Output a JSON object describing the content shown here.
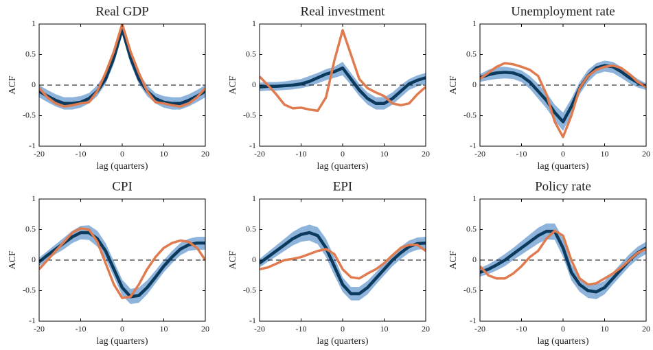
{
  "chart_data": [
    {
      "type": "line",
      "title": "Real GDP",
      "xlabel": "lag (quarters)",
      "ylabel": "ACF",
      "x": [
        -20,
        -18,
        -16,
        -14,
        -12,
        -10,
        -8,
        -6,
        -4,
        -2,
        0,
        2,
        4,
        6,
        8,
        10,
        12,
        14,
        16,
        18,
        20
      ],
      "xlim": [
        -20,
        20
      ],
      "ylim": [
        -1,
        1
      ],
      "xticks": [
        -20,
        -10,
        0,
        10,
        20
      ],
      "yticks": [
        -1,
        -0.5,
        0,
        0.5,
        1
      ],
      "reference_line": 0,
      "band": {
        "color": "#8fb4dc",
        "lower": [
          -0.2,
          -0.28,
          -0.35,
          -0.4,
          -0.4,
          -0.37,
          -0.3,
          -0.18,
          0.02,
          0.35,
          0.82,
          0.35,
          0.02,
          -0.18,
          -0.3,
          -0.37,
          -0.4,
          -0.4,
          -0.35,
          -0.28,
          -0.2
        ],
        "upper": [
          0.0,
          -0.08,
          -0.15,
          -0.2,
          -0.2,
          -0.18,
          -0.13,
          0.0,
          0.2,
          0.55,
          1.0,
          0.55,
          0.2,
          0.0,
          -0.13,
          -0.18,
          -0.2,
          -0.2,
          -0.15,
          -0.08,
          0.0
        ]
      },
      "series": [
        {
          "color": "#0b3a5c",
          "values": [
            -0.1,
            -0.18,
            -0.25,
            -0.3,
            -0.3,
            -0.28,
            -0.22,
            -0.1,
            0.1,
            0.45,
            0.92,
            0.45,
            0.1,
            -0.1,
            -0.22,
            -0.28,
            -0.3,
            -0.3,
            -0.25,
            -0.18,
            -0.1
          ]
        },
        {
          "color": "#e07b4f",
          "values": [
            -0.05,
            -0.2,
            -0.3,
            -0.35,
            -0.33,
            -0.3,
            -0.28,
            -0.1,
            0.2,
            0.55,
            1.0,
            0.55,
            0.2,
            -0.1,
            -0.28,
            -0.3,
            -0.33,
            -0.35,
            -0.3,
            -0.2,
            -0.05
          ]
        }
      ]
    },
    {
      "type": "line",
      "title": "Real investment",
      "xlabel": "lag (quarters)",
      "ylabel": "ACF",
      "x": [
        -20,
        -18,
        -16,
        -14,
        -12,
        -10,
        -8,
        -6,
        -4,
        -2,
        0,
        2,
        4,
        6,
        8,
        10,
        12,
        14,
        16,
        18,
        20
      ],
      "xlim": [
        -20,
        20
      ],
      "ylim": [
        -1,
        1
      ],
      "xticks": [
        -20,
        -10,
        0,
        10,
        20
      ],
      "yticks": [
        -1,
        -0.5,
        0,
        0.5,
        1
      ],
      "reference_line": 0,
      "band": {
        "color": "#8fb4dc",
        "lower": [
          -0.1,
          -0.09,
          -0.09,
          -0.08,
          -0.07,
          -0.05,
          -0.02,
          0.03,
          0.08,
          0.12,
          0.16,
          0.0,
          -0.18,
          -0.32,
          -0.4,
          -0.4,
          -0.32,
          -0.2,
          -0.08,
          -0.02,
          0.02
        ],
        "upper": [
          0.04,
          0.05,
          0.05,
          0.06,
          0.08,
          0.1,
          0.15,
          0.2,
          0.26,
          0.3,
          0.38,
          0.2,
          0.02,
          -0.12,
          -0.2,
          -0.2,
          -0.12,
          0.0,
          0.1,
          0.16,
          0.2
        ]
      },
      "series": [
        {
          "color": "#0b3a5c",
          "values": [
            -0.03,
            -0.02,
            -0.02,
            -0.01,
            0,
            0.02,
            0.06,
            0.12,
            0.18,
            0.22,
            0.28,
            0.1,
            -0.08,
            -0.22,
            -0.3,
            -0.3,
            -0.22,
            -0.1,
            0.02,
            0.08,
            0.12
          ]
        },
        {
          "color": "#e07b4f",
          "values": [
            0.14,
            0.0,
            -0.15,
            -0.32,
            -0.38,
            -0.37,
            -0.4,
            -0.42,
            -0.2,
            0.4,
            0.9,
            0.5,
            0.1,
            -0.05,
            -0.12,
            -0.18,
            -0.3,
            -0.33,
            -0.3,
            -0.15,
            -0.03
          ]
        }
      ]
    },
    {
      "type": "line",
      "title": "Unemployment rate",
      "xlabel": "lag (quarters)",
      "ylabel": "ACF",
      "x": [
        -20,
        -18,
        -16,
        -14,
        -12,
        -10,
        -8,
        -6,
        -4,
        -2,
        0,
        2,
        4,
        6,
        8,
        10,
        12,
        14,
        16,
        18,
        20
      ],
      "xlim": [
        -20,
        20
      ],
      "ylim": [
        -1,
        1
      ],
      "xticks": [
        -20,
        -10,
        0,
        10,
        20
      ],
      "yticks": [
        -1,
        -0.5,
        0,
        0.5,
        1
      ],
      "reference_line": 0,
      "band": {
        "color": "#8fb4dc",
        "lower": [
          0.05,
          0.08,
          0.1,
          0.11,
          0.1,
          0.05,
          -0.06,
          -0.22,
          -0.38,
          -0.58,
          -0.75,
          -0.48,
          -0.15,
          0.05,
          0.18,
          0.22,
          0.2,
          0.12,
          0.03,
          -0.04,
          -0.08
        ],
        "upper": [
          0.18,
          0.25,
          0.3,
          0.3,
          0.28,
          0.24,
          0.15,
          0.02,
          -0.12,
          -0.32,
          -0.45,
          -0.22,
          0.05,
          0.25,
          0.36,
          0.4,
          0.38,
          0.3,
          0.2,
          0.1,
          0.03
        ]
      },
      "series": [
        {
          "color": "#0b3a5c",
          "values": [
            0.12,
            0.17,
            0.2,
            0.21,
            0.2,
            0.15,
            0.05,
            -0.1,
            -0.25,
            -0.45,
            -0.6,
            -0.35,
            -0.05,
            0.15,
            0.28,
            0.32,
            0.3,
            0.22,
            0.12,
            0.04,
            -0.02
          ]
        },
        {
          "color": "#e07b4f",
          "values": [
            0.1,
            0.2,
            0.3,
            0.36,
            0.34,
            0.3,
            0.25,
            0.15,
            -0.15,
            -0.6,
            -0.85,
            -0.5,
            -0.05,
            0.15,
            0.25,
            0.3,
            0.32,
            0.28,
            0.18,
            0.05,
            -0.03
          ]
        }
      ]
    },
    {
      "type": "line",
      "title": "CPI",
      "xlabel": "lag (quarters)",
      "ylabel": "ACF",
      "x": [
        -20,
        -18,
        -16,
        -14,
        -12,
        -10,
        -8,
        -6,
        -4,
        -2,
        0,
        2,
        4,
        6,
        8,
        10,
        12,
        14,
        16,
        18,
        20
      ],
      "xlim": [
        -20,
        20
      ],
      "ylim": [
        -1,
        1
      ],
      "xticks": [
        -20,
        -10,
        0,
        10,
        20
      ],
      "yticks": [
        -1,
        -0.5,
        0,
        0.5,
        1
      ],
      "reference_line": 0,
      "band": {
        "color": "#8fb4dc",
        "lower": [
          -0.1,
          0.0,
          0.1,
          0.18,
          0.28,
          0.34,
          0.33,
          0.22,
          0.02,
          -0.28,
          -0.58,
          -0.72,
          -0.7,
          -0.56,
          -0.38,
          -0.2,
          -0.05,
          0.08,
          0.15,
          0.17,
          0.17
        ],
        "upper": [
          0.04,
          0.15,
          0.26,
          0.37,
          0.48,
          0.56,
          0.57,
          0.48,
          0.28,
          -0.02,
          -0.32,
          -0.47,
          -0.45,
          -0.33,
          -0.17,
          0.0,
          0.15,
          0.28,
          0.35,
          0.38,
          0.38
        ]
      },
      "series": [
        {
          "color": "#0b3a5c",
          "values": [
            -0.03,
            0.08,
            0.18,
            0.28,
            0.38,
            0.45,
            0.45,
            0.35,
            0.15,
            -0.15,
            -0.45,
            -0.6,
            -0.58,
            -0.45,
            -0.28,
            -0.1,
            0.05,
            0.18,
            0.25,
            0.28,
            0.28
          ]
        },
        {
          "color": "#e07b4f",
          "values": [
            -0.15,
            0.0,
            0.15,
            0.3,
            0.45,
            0.52,
            0.5,
            0.3,
            -0.05,
            -0.4,
            -0.62,
            -0.6,
            -0.4,
            -0.15,
            0.05,
            0.2,
            0.28,
            0.32,
            0.3,
            0.2,
            0.0
          ]
        }
      ]
    },
    {
      "type": "line",
      "title": "EPI",
      "xlabel": "lag (quarters)",
      "ylabel": "ACF",
      "x": [
        -20,
        -18,
        -16,
        -14,
        -12,
        -10,
        -8,
        -6,
        -4,
        -2,
        0,
        2,
        4,
        6,
        8,
        10,
        12,
        14,
        16,
        18,
        20
      ],
      "xlim": [
        -20,
        20
      ],
      "ylim": [
        -1,
        1
      ],
      "xticks": [
        -20,
        -10,
        0,
        10,
        20
      ],
      "yticks": [
        -1,
        -0.5,
        0,
        0.5,
        1
      ],
      "reference_line": 0,
      "band": {
        "color": "#8fb4dc",
        "lower": [
          -0.12,
          -0.03,
          0.06,
          0.15,
          0.24,
          0.3,
          0.32,
          0.26,
          0.05,
          -0.25,
          -0.52,
          -0.66,
          -0.66,
          -0.56,
          -0.4,
          -0.25,
          -0.1,
          0.02,
          0.12,
          0.17,
          0.18
        ],
        "upper": [
          0.02,
          0.13,
          0.24,
          0.35,
          0.46,
          0.54,
          0.58,
          0.54,
          0.35,
          0.05,
          -0.28,
          -0.44,
          -0.44,
          -0.34,
          -0.2,
          -0.05,
          0.1,
          0.22,
          0.32,
          0.37,
          0.38
        ]
      },
      "series": [
        {
          "color": "#0b3a5c",
          "values": [
            -0.05,
            0.05,
            0.15,
            0.25,
            0.35,
            0.42,
            0.45,
            0.4,
            0.2,
            -0.1,
            -0.4,
            -0.55,
            -0.55,
            -0.45,
            -0.3,
            -0.15,
            0.0,
            0.12,
            0.22,
            0.27,
            0.28
          ]
        },
        {
          "color": "#e07b4f",
          "values": [
            -0.15,
            -0.12,
            -0.06,
            0.0,
            0.02,
            0.05,
            0.1,
            0.15,
            0.18,
            0.1,
            -0.15,
            -0.28,
            -0.3,
            -0.22,
            -0.15,
            -0.05,
            0.08,
            0.2,
            0.25,
            0.25,
            0.15
          ]
        }
      ]
    },
    {
      "type": "line",
      "title": "Policy rate",
      "xlabel": "lag (quarters)",
      "ylabel": "ACF",
      "x": [
        -20,
        -18,
        -16,
        -14,
        -12,
        -10,
        -8,
        -6,
        -4,
        -2,
        0,
        2,
        4,
        6,
        8,
        10,
        12,
        14,
        16,
        18,
        20
      ],
      "xlim": [
        -20,
        20
      ],
      "ylim": [
        -1,
        1
      ],
      "xticks": [
        -20,
        -10,
        0,
        10,
        20
      ],
      "yticks": [
        -1,
        -0.5,
        0,
        0.5,
        1
      ],
      "reference_line": 0,
      "band": {
        "color": "#8fb4dc",
        "lower": [
          -0.27,
          -0.23,
          -0.17,
          -0.1,
          0.0,
          0.09,
          0.18,
          0.27,
          0.34,
          0.33,
          0.05,
          -0.33,
          -0.52,
          -0.62,
          -0.64,
          -0.56,
          -0.4,
          -0.25,
          -0.1,
          0.02,
          0.1
        ],
        "upper": [
          -0.13,
          -0.07,
          0.01,
          0.1,
          0.2,
          0.31,
          0.42,
          0.53,
          0.6,
          0.6,
          0.35,
          -0.07,
          -0.28,
          -0.38,
          -0.4,
          -0.34,
          -0.2,
          -0.05,
          0.1,
          0.22,
          0.3
        ]
      },
      "series": [
        {
          "color": "#0b3a5c",
          "values": [
            -0.2,
            -0.15,
            -0.08,
            0.0,
            0.1,
            0.2,
            0.3,
            0.4,
            0.47,
            0.47,
            0.2,
            -0.2,
            -0.4,
            -0.5,
            -0.52,
            -0.45,
            -0.3,
            -0.15,
            0.0,
            0.12,
            0.2
          ]
        },
        {
          "color": "#e07b4f",
          "values": [
            -0.1,
            -0.25,
            -0.3,
            -0.3,
            -0.22,
            -0.1,
            0.05,
            0.15,
            0.35,
            0.48,
            0.4,
            0.0,
            -0.3,
            -0.4,
            -0.38,
            -0.3,
            -0.22,
            -0.12,
            0.0,
            0.12,
            0.18
          ]
        }
      ]
    }
  ]
}
